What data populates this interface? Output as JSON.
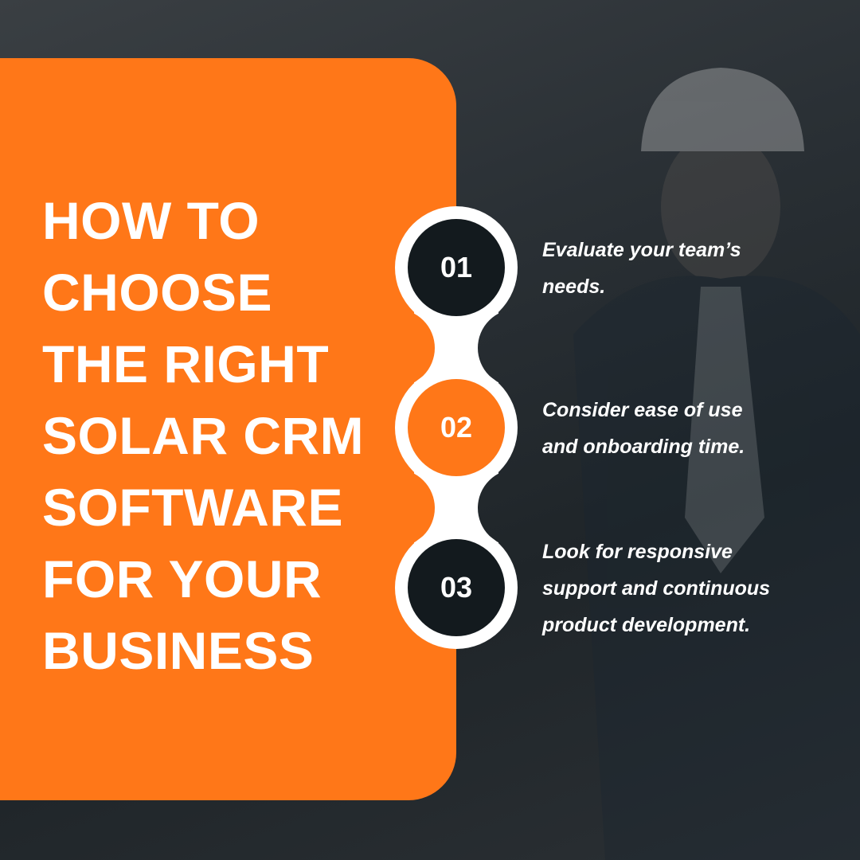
{
  "colors": {
    "accent": "#ff7718",
    "dark": "#131a1e",
    "white": "#ffffff"
  },
  "title_lines": [
    "HOW TO",
    "CHOOSE",
    "THE RIGHT",
    "SOLAR CRM",
    "SOFTWARE",
    "FOR YOUR",
    "BUSINESS"
  ],
  "steps": [
    {
      "number": "01",
      "lines": [
        "Evaluate your team’s",
        "needs."
      ]
    },
    {
      "number": "02",
      "lines": [
        "Consider ease of use",
        "and onboarding time."
      ]
    },
    {
      "number": "03",
      "lines": [
        "Look for responsive",
        "support and continuous",
        "product development."
      ]
    }
  ]
}
